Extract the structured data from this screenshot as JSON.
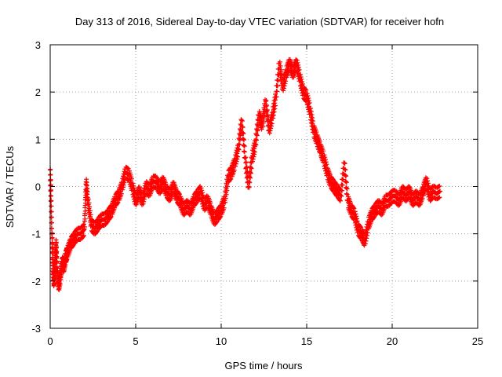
{
  "chart_data": {
    "type": "scatter",
    "title": "Day 313 of 2016, Sidereal Day-to-day VTEC variation (SDTVAR) for receiver hofn",
    "xlabel": "GPS time / hours",
    "ylabel": "SDTVAR / TECUs",
    "xlim": [
      0,
      25
    ],
    "ylim": [
      -3,
      3
    ],
    "xticks": [
      "0",
      "5",
      "10",
      "15",
      "20",
      "25"
    ],
    "yticks": [
      "-3",
      "-2",
      "-1",
      "0",
      "1",
      "2",
      "3"
    ],
    "grid": true,
    "marker": "+",
    "color": "#ff0000",
    "series": [
      {
        "name": "SDTVAR",
        "x": [
          0.0,
          0.05,
          0.1,
          0.15,
          0.2,
          0.25,
          0.3,
          0.35,
          0.4,
          0.5,
          0.6,
          0.7,
          0.8,
          0.9,
          1.0,
          1.2,
          1.4,
          1.6,
          1.8,
          2.0,
          2.1,
          2.2,
          2.4,
          2.6,
          2.8,
          3.0,
          3.2,
          3.4,
          3.6,
          3.8,
          4.0,
          4.2,
          4.4,
          4.6,
          4.8,
          5.0,
          5.2,
          5.4,
          5.6,
          5.8,
          6.0,
          6.2,
          6.4,
          6.6,
          6.8,
          7.0,
          7.2,
          7.4,
          7.6,
          7.8,
          8.0,
          8.2,
          8.4,
          8.6,
          8.8,
          9.0,
          9.2,
          9.4,
          9.6,
          9.8,
          10.0,
          10.2,
          10.4,
          10.6,
          10.8,
          11.0,
          11.2,
          11.4,
          11.6,
          11.8,
          12.0,
          12.2,
          12.4,
          12.6,
          12.8,
          13.0,
          13.2,
          13.4,
          13.6,
          13.8,
          14.0,
          14.2,
          14.4,
          14.6,
          14.8,
          15.0,
          15.2,
          15.4,
          15.6,
          15.8,
          16.0,
          16.2,
          16.4,
          16.6,
          16.8,
          17.0,
          17.2,
          17.4,
          17.6,
          17.8,
          18.0,
          18.2,
          18.4,
          18.6,
          18.8,
          19.0,
          19.2,
          19.4,
          19.6,
          19.8,
          20.0,
          20.2,
          20.4,
          20.6,
          20.8,
          21.0,
          21.2,
          21.4,
          21.6,
          21.8,
          22.0,
          22.2,
          22.4,
          22.6,
          22.8
        ],
        "y": [
          0.35,
          -0.3,
          -1.0,
          -1.6,
          -2.0,
          -1.9,
          -1.5,
          -1.2,
          -1.8,
          -2.1,
          -1.9,
          -1.6,
          -1.7,
          -1.5,
          -1.4,
          -1.2,
          -1.1,
          -1.0,
          -1.0,
          -0.9,
          0.1,
          -0.3,
          -0.8,
          -0.9,
          -0.8,
          -0.7,
          -0.7,
          -0.6,
          -0.5,
          -0.3,
          -0.2,
          0.0,
          0.3,
          0.25,
          0.0,
          -0.3,
          -0.1,
          -0.3,
          0.0,
          -0.1,
          0.1,
          0.1,
          -0.05,
          0.1,
          -0.1,
          -0.2,
          0.0,
          -0.2,
          -0.3,
          -0.5,
          -0.4,
          -0.5,
          -0.3,
          -0.2,
          -0.1,
          -0.4,
          -0.3,
          -0.5,
          -0.7,
          -0.6,
          -0.5,
          -0.3,
          0.2,
          0.3,
          0.5,
          0.8,
          1.4,
          0.6,
          0.0,
          0.6,
          0.9,
          1.5,
          1.3,
          1.8,
          1.2,
          1.5,
          1.9,
          2.6,
          2.1,
          2.4,
          2.6,
          2.4,
          2.6,
          2.3,
          2.0,
          1.9,
          1.6,
          1.2,
          1.0,
          0.8,
          0.6,
          0.3,
          0.1,
          0.0,
          -0.1,
          -0.2,
          0.5,
          -0.3,
          -0.5,
          -0.6,
          -0.9,
          -1.0,
          -1.15,
          -0.8,
          -0.6,
          -0.5,
          -0.4,
          -0.5,
          -0.3,
          -0.3,
          -0.2,
          -0.2,
          -0.3,
          -0.1,
          -0.2,
          -0.1,
          -0.3,
          -0.2,
          -0.3,
          -0.1,
          0.1,
          -0.2,
          -0.1,
          -0.15,
          -0.1
        ]
      }
    ]
  }
}
